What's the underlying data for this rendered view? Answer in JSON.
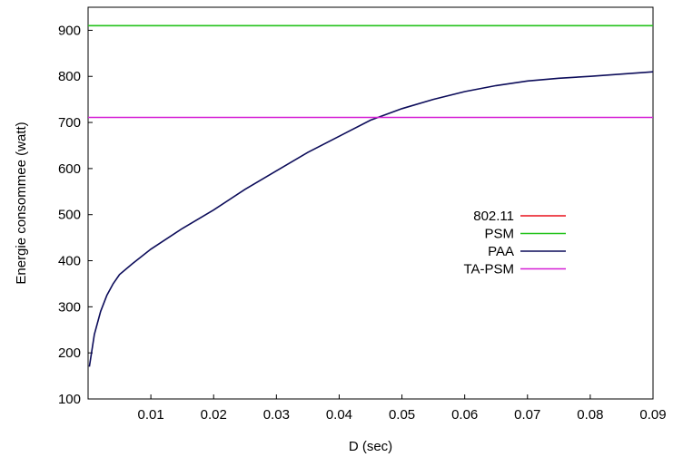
{
  "chart_data": {
    "type": "line",
    "title": "",
    "xlabel": "D (sec)",
    "ylabel": "Energie consommee (watt)",
    "xlim": [
      0.0,
      0.09
    ],
    "ylim": [
      100,
      950
    ],
    "xticks": [
      0.01,
      0.02,
      0.03,
      0.04,
      0.05,
      0.06,
      0.07,
      0.08,
      0.09
    ],
    "xtick_labels": [
      "0.01",
      "0.02",
      "0.03",
      "0.04",
      "0.05",
      "0.06",
      "0.07",
      "0.08",
      "0.09"
    ],
    "yticks": [
      100,
      200,
      300,
      400,
      500,
      600,
      700,
      800,
      900
    ],
    "ytick_labels": [
      "100",
      "200",
      "300",
      "400",
      "500",
      "600",
      "700",
      "800",
      "900"
    ],
    "grid": false,
    "legend_position": "center-right",
    "series": [
      {
        "name": "802.11",
        "color": "#e8101c",
        "x": [],
        "y": []
      },
      {
        "name": "PSM",
        "color": "#22c21a",
        "x": [
          0.0,
          0.09
        ],
        "y": [
          910,
          910
        ]
      },
      {
        "name": "PAA",
        "color": "#0c0c5a",
        "x": [
          0.0002,
          0.001,
          0.002,
          0.003,
          0.004,
          0.005,
          0.007,
          0.01,
          0.015,
          0.02,
          0.025,
          0.03,
          0.035,
          0.04,
          0.045,
          0.05,
          0.055,
          0.06,
          0.065,
          0.07,
          0.075,
          0.08,
          0.085,
          0.09
        ],
        "y": [
          170,
          240,
          290,
          325,
          350,
          370,
          393,
          425,
          470,
          510,
          555,
          595,
          635,
          670,
          705,
          730,
          750,
          767,
          780,
          790,
          796,
          800,
          805,
          810
        ]
      },
      {
        "name": "TA-PSM",
        "color": "#d51fd5",
        "x": [
          0.0,
          0.09
        ],
        "y": [
          711,
          711
        ]
      }
    ]
  }
}
